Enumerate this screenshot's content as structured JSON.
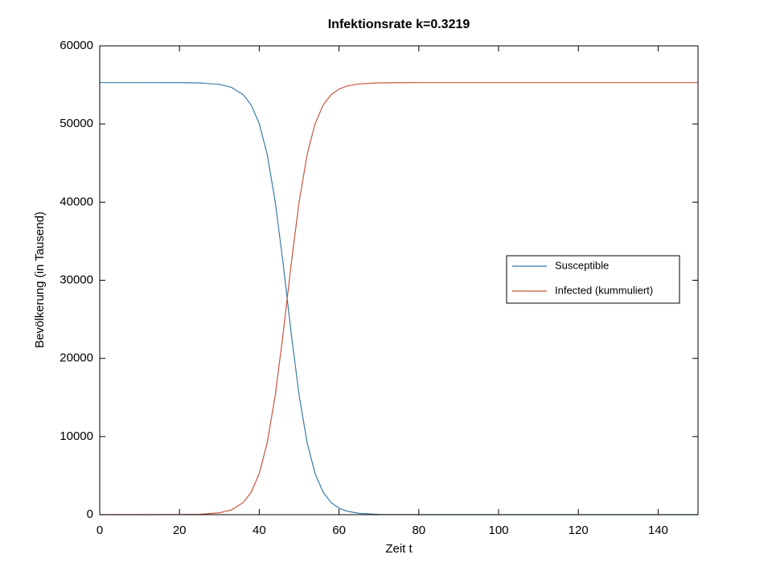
{
  "chart_data": {
    "type": "line",
    "title": "Infektionsrate k=0.3219",
    "x_label": "Zeit t",
    "y_label": "Bevölkerung (in Tausend)",
    "x": [
      0,
      10,
      20,
      25,
      30,
      33,
      36,
      38,
      40,
      42,
      44,
      46,
      47,
      48,
      50,
      52,
      54,
      56,
      58,
      60,
      62,
      65,
      70,
      80,
      90,
      100,
      120,
      150
    ],
    "series": [
      {
        "name": "Susceptible",
        "color": "#3b7ba6",
        "values": [
          55300,
          55300,
          55291,
          55254,
          55069,
          54696,
          53742,
          52408,
          50043,
          46083,
          40053,
          32065,
          27650,
          23238,
          15248,
          9217,
          5260,
          2893,
          1558,
          830,
          439,
          168,
          34,
          1,
          0,
          0,
          0,
          0
        ]
      },
      {
        "name": "Infected (kummuliert)",
        "color": "#c9563e",
        "values": [
          0,
          0,
          9,
          46,
          231,
          604,
          1558,
          2892,
          5257,
          9217,
          15247,
          23235,
          27650,
          32062,
          40052,
          46083,
          50040,
          52407,
          53742,
          54470,
          54861,
          55132,
          55266,
          55299,
          55300,
          55300,
          55300,
          55300
        ]
      }
    ],
    "xlim": [
      0,
      150
    ],
    "xticks": [
      0,
      20,
      40,
      60,
      80,
      100,
      120,
      140
    ],
    "ylim": [
      0,
      60000
    ],
    "yticks": [
      0,
      10000,
      20000,
      30000,
      40000,
      50000,
      60000
    ],
    "grid": false,
    "legend": "right"
  }
}
